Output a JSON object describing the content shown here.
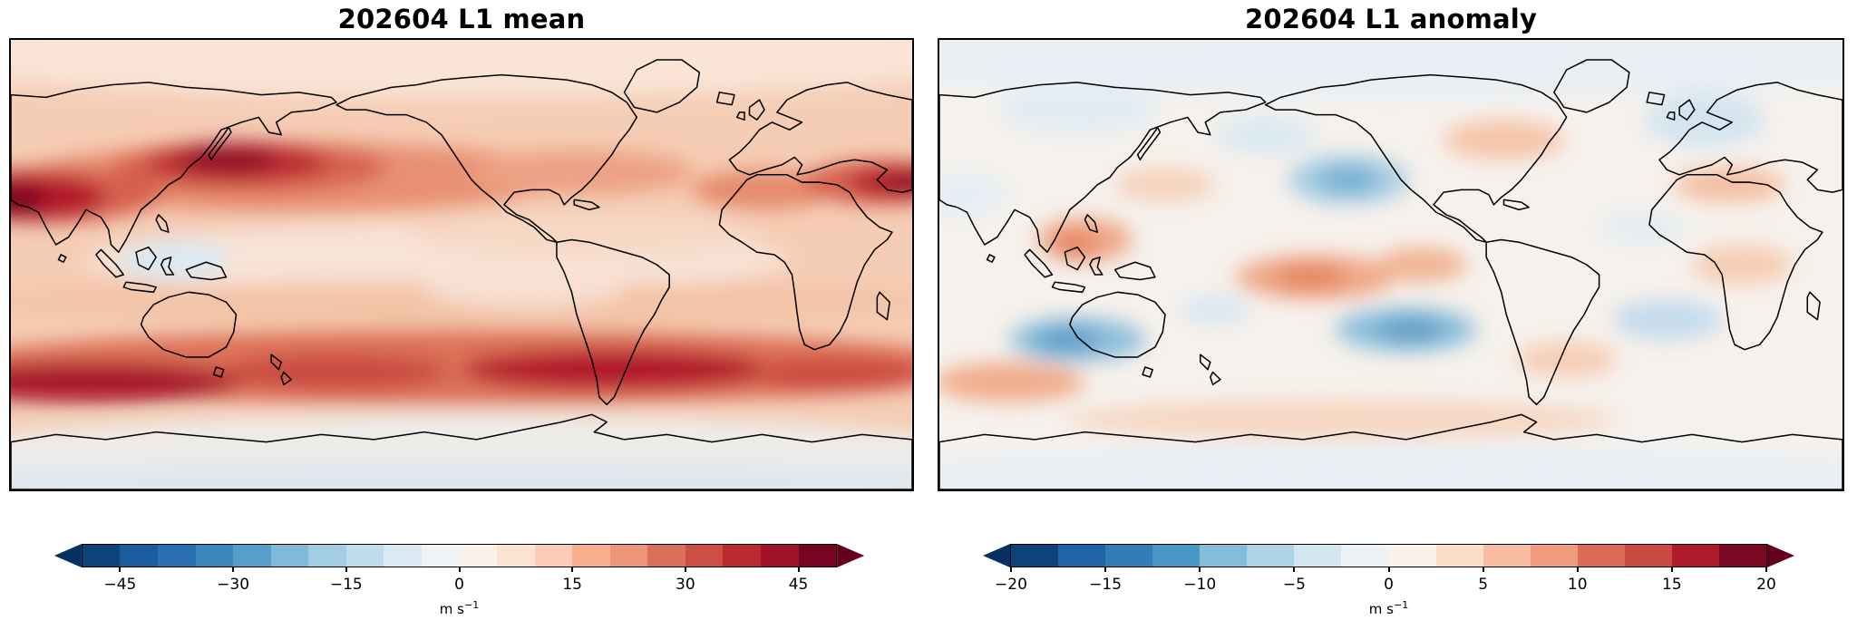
{
  "figure": {
    "background": "#ffffff",
    "panels": [
      {
        "title": "202604 L1 mean",
        "colorbar": {
          "vmin": -50,
          "vmax": 50,
          "unit_base": "m s",
          "unit_exp": "−1",
          "arrow_left": "#053061",
          "arrow_right": "#67001f",
          "segments": [
            "#0c4378",
            "#1a5c9e",
            "#2a70b2",
            "#3b88bd",
            "#579fca",
            "#7fbad8",
            "#a2cde2",
            "#c1dded",
            "#dbeaf2",
            "#f0f4f6",
            "#f9f0ea",
            "#fce2d3",
            "#fbcdb6",
            "#f6ae8c",
            "#ec9579",
            "#dc6f5a",
            "#cd4e45",
            "#b92a30",
            "#9f1227",
            "#760522"
          ],
          "ticks": [
            {
              "label": "−45",
              "value": -45
            },
            {
              "label": "−30",
              "value": -30
            },
            {
              "label": "−15",
              "value": -15
            },
            {
              "label": "0",
              "value": 0
            },
            {
              "label": "15",
              "value": 15
            },
            {
              "label": "30",
              "value": 30
            },
            {
              "label": "45",
              "value": 45
            }
          ]
        }
      },
      {
        "title": "202604 L1 anomaly",
        "colorbar": {
          "vmin": -20,
          "vmax": 20,
          "unit_base": "m s",
          "unit_exp": "−1",
          "arrow_left": "#053061",
          "arrow_right": "#67001f",
          "segments": [
            "#0d4379",
            "#1f64a7",
            "#337cb7",
            "#4897c4",
            "#84bdd9",
            "#aed3e6",
            "#d3e6f0",
            "#ecf2f5",
            "#f9f1ec",
            "#fcdecb",
            "#f8bda3",
            "#ef9b7c",
            "#da6c58",
            "#c84a42",
            "#ae1c2c",
            "#7b0823"
          ],
          "ticks": [
            {
              "label": "−20",
              "value": -20
            },
            {
              "label": "−15",
              "value": -15
            },
            {
              "label": "−10",
              "value": -10
            },
            {
              "label": "−5",
              "value": -5
            },
            {
              "label": "0",
              "value": 0
            },
            {
              "label": "5",
              "value": 5
            },
            {
              "label": "10",
              "value": 10
            },
            {
              "label": "15",
              "value": 15
            },
            {
              "label": "20",
              "value": 20
            }
          ]
        }
      }
    ]
  },
  "chart_data": [
    {
      "type": "heatmap",
      "title": "202604 L1 mean",
      "projection": "global latitude-longitude map, Pacific-centered, with coastlines",
      "colormap": "RdBu_r (diverging blue-white-red)",
      "units": "m s⁻¹",
      "value_range": [
        -50,
        50
      ],
      "contour_interval": 5,
      "colorbar_ticks": [
        -45,
        -30,
        -15,
        0,
        15,
        30,
        45
      ],
      "colorbar_extend": "both (arrow ends)",
      "description": "Filled-contour map of mean wind speed; field is almost entirely positive (red). Strongest maxima (>40 m s⁻¹): over/east of Japan in the NW Pacific, at the left map edge near the Middle East, at the right edge over the North Atlantic, and in a circumpolar Southern Ocean band near 45–55°S. Values are weak/near zero over the equatorial Maritime Continent (slightly negative/blue), the Arctic, and Antarctica."
    },
    {
      "type": "heatmap",
      "title": "202604 L1 anomaly",
      "projection": "global latitude-longitude map, Pacific-centered, with coastlines",
      "colormap": "RdBu_r (diverging blue-white-red)",
      "units": "m s⁻¹",
      "value_range": [
        -20,
        20
      ],
      "contour_interval": 2.5,
      "colorbar_ticks": [
        -20,
        -15,
        -10,
        -5,
        0,
        5,
        10,
        15,
        20
      ],
      "colorbar_extend": "both (arrow ends)",
      "description": "Filled-contour anomaly map with weak mixed signals. Negative (blue) anomalies (≈ −5 to −10 m s⁻¹): central North Pacific, Europe, southern Indian Ocean south of Australia, central South Pacific, and South Atlantic. Positive (orange) anomalies (≈ +5 m s⁻¹): Maritime Continent/Philippines, subtropical South Pacific, southern Indian Ocean near 50°S, North America, and the subtropical North Atlantic."
    }
  ]
}
